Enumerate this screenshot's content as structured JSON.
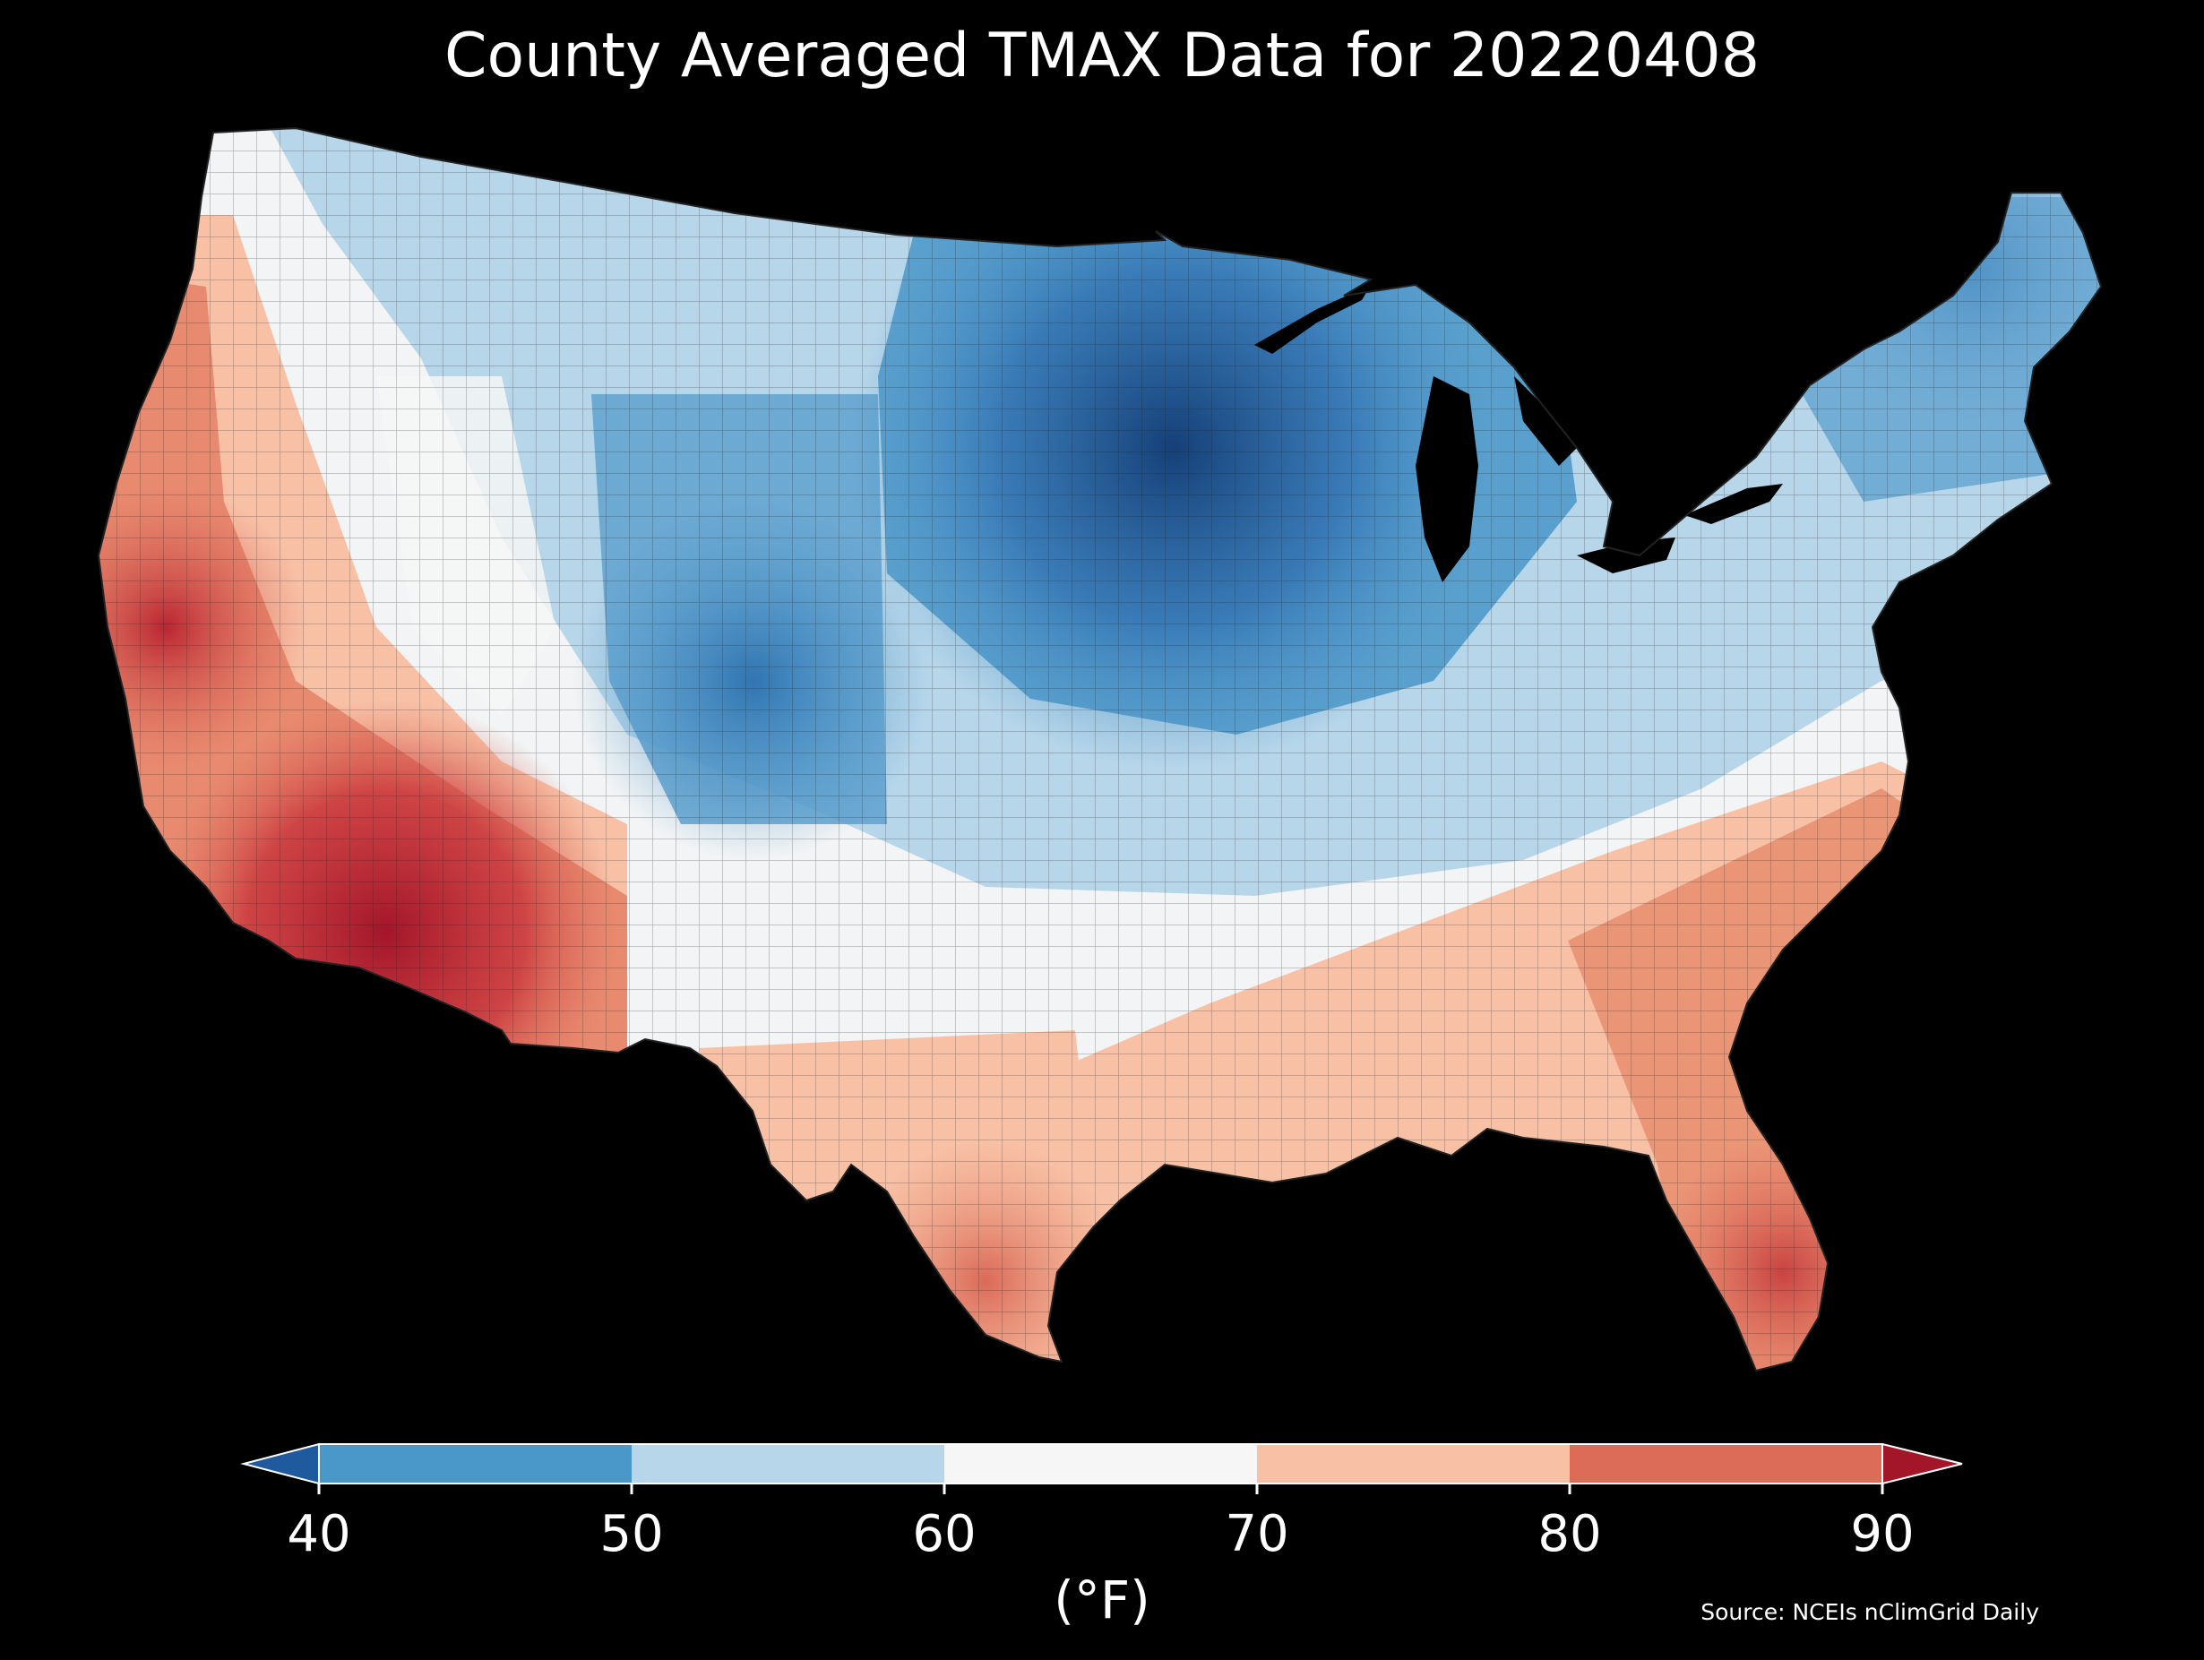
{
  "title": "County Averaged TMAX Data for 20220408",
  "colorbar": {
    "unit": "(°F)",
    "ticks": [
      "40",
      "50",
      "60",
      "70",
      "80",
      "90"
    ],
    "bins": [
      {
        "range": "<40",
        "color": "#1f5a9e"
      },
      {
        "range": "40-50",
        "color": "#4a97c9"
      },
      {
        "range": "50-60",
        "color": "#b7d6ea"
      },
      {
        "range": "60-70",
        "color": "#f6f6f6"
      },
      {
        "range": "70-80",
        "color": "#f8c1a6"
      },
      {
        "range": "80-90",
        "color": "#dc6b57"
      },
      {
        "range": ">90",
        "color": "#a3162a"
      }
    ]
  },
  "source": "Source: NCEIs nClimGrid Daily"
}
